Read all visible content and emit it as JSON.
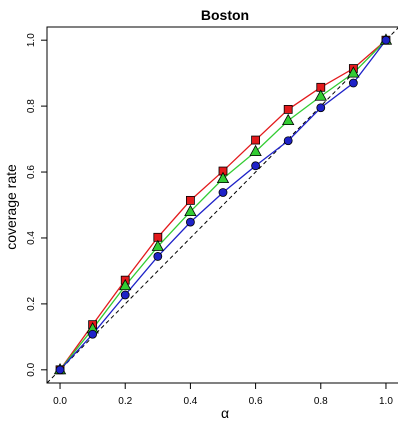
{
  "chart_data": {
    "type": "line",
    "title": "Boston",
    "xlabel": "α",
    "ylabel": "coverage rate",
    "xlim": [
      -0.04,
      1.04
    ],
    "ylim": [
      -0.04,
      1.04
    ],
    "x_ticks": [
      0.0,
      0.2,
      0.4,
      0.6,
      0.8,
      1.0
    ],
    "y_ticks": [
      0.0,
      0.2,
      0.4,
      0.6,
      0.8,
      1.0
    ],
    "x_tick_labels": [
      "0.0",
      "0.2",
      "0.4",
      "0.6",
      "0.8",
      "1.0"
    ],
    "y_tick_labels": [
      "0.0",
      "0.2",
      "0.4",
      "0.6",
      "0.8",
      "1.0"
    ],
    "grid": false,
    "legend": "none",
    "reference_line": {
      "style": "dashed",
      "color": "#000000",
      "slope": 1,
      "intercept": 0
    },
    "x": [
      0.0,
      0.1,
      0.2,
      0.3,
      0.4,
      0.5,
      0.6,
      0.7,
      0.8,
      0.9,
      1.0
    ],
    "series": [
      {
        "color": "#e31a1c",
        "marker": "square",
        "values": [
          0.0,
          0.137,
          0.272,
          0.402,
          0.514,
          0.603,
          0.697,
          0.79,
          0.857,
          0.914,
          1.0
        ]
      },
      {
        "color": "#33cc33",
        "marker": "triangle",
        "values": [
          0.0,
          0.124,
          0.255,
          0.374,
          0.48,
          0.58,
          0.662,
          0.756,
          0.83,
          0.9,
          1.0
        ]
      },
      {
        "color": "#1e22c8",
        "marker": "circle",
        "values": [
          0.0,
          0.108,
          0.227,
          0.344,
          0.448,
          0.538,
          0.619,
          0.695,
          0.795,
          0.87,
          1.0
        ]
      }
    ]
  }
}
